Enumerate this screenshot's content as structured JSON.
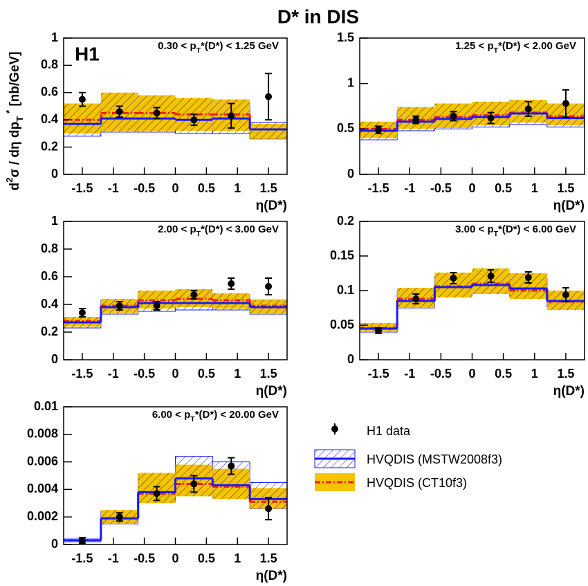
{
  "title": "D* in DIS",
  "experiment": "H1",
  "x_label": "η(D*)",
  "y_label": [
    {
      "text": "d",
      "pos": "base"
    },
    {
      "text": "2",
      "pos": "sup"
    },
    {
      "text": "σ / dη dp",
      "pos": "base"
    },
    {
      "text": "T",
      "pos": "sub"
    },
    {
      "text": " *",
      "pos": "sup"
    },
    {
      "text": " [nb/GeV]",
      "pos": "base"
    }
  ],
  "legend": [
    {
      "name": "H1 data",
      "color": "#000000"
    },
    {
      "name": "HVQDIS (MSTW2008f3)",
      "color": "#1a1aff"
    },
    {
      "name": "HVQDIS (CT10f3)",
      "color": "#f5c400",
      "line_color": "#ff1a1a"
    }
  ],
  "chart_data": [
    {
      "type": "step",
      "label": [
        {
          "text": "0.30 < p",
          "pos": "base"
        },
        {
          "text": "T",
          "pos": "sub"
        },
        {
          "text": "*(D*) < 1.25 GeV",
          "pos": "base"
        }
      ],
      "bins": [
        -1.8,
        -1.2,
        -0.6,
        0,
        0.6,
        1.2,
        1.8
      ],
      "xlim": [
        -1.8,
        1.8
      ],
      "xticks": [
        -1.5,
        -1,
        -0.5,
        0,
        0.5,
        1,
        1.5
      ],
      "ylim": [
        0,
        1
      ],
      "yticks": [
        0,
        0.2,
        0.4,
        0.6,
        0.8,
        1
      ],
      "data": {
        "x": [
          -1.5,
          -0.9,
          -0.3,
          0.3,
          0.9,
          1.5
        ],
        "values": [
          0.55,
          0.46,
          0.45,
          0.4,
          0.43,
          0.57
        ],
        "errors": [
          0.05,
          0.04,
          0.04,
          0.04,
          0.09,
          0.17
        ]
      },
      "mstw": {
        "values": [
          0.37,
          0.41,
          0.41,
          0.4,
          0.41,
          0.33
        ],
        "lower": [
          0.28,
          0.31,
          0.31,
          0.3,
          0.3,
          0.26
        ],
        "upper": [
          0.47,
          0.52,
          0.52,
          0.51,
          0.51,
          0.38
        ]
      },
      "ct10": {
        "values": [
          0.4,
          0.45,
          0.45,
          0.44,
          0.44,
          0.33
        ],
        "lower": [
          0.3,
          0.32,
          0.32,
          0.32,
          0.32,
          0.26
        ],
        "upper": [
          0.52,
          0.6,
          0.58,
          0.56,
          0.55,
          0.37
        ]
      }
    },
    {
      "type": "step",
      "label": [
        {
          "text": "1.25 < p",
          "pos": "base"
        },
        {
          "text": "T",
          "pos": "sub"
        },
        {
          "text": "*(D*) < 2.00 GeV",
          "pos": "base"
        }
      ],
      "bins": [
        -1.8,
        -1.2,
        -0.6,
        0,
        0.6,
        1.2,
        1.8
      ],
      "xlim": [
        -1.8,
        1.8
      ],
      "xticks": [
        -1.5,
        -1,
        -0.5,
        0,
        0.5,
        1,
        1.5
      ],
      "ylim": [
        0,
        1.5
      ],
      "yticks": [
        0,
        0.5,
        1,
        1.5
      ],
      "data": {
        "x": [
          -1.5,
          -0.9,
          -0.3,
          0.3,
          0.9,
          1.5
        ],
        "values": [
          0.49,
          0.6,
          0.64,
          0.62,
          0.72,
          0.78
        ],
        "errors": [
          0.04,
          0.04,
          0.05,
          0.06,
          0.08,
          0.15
        ]
      },
      "mstw": {
        "values": [
          0.48,
          0.58,
          0.61,
          0.63,
          0.67,
          0.62
        ],
        "lower": [
          0.38,
          0.48,
          0.5,
          0.52,
          0.55,
          0.52
        ],
        "upper": [
          0.56,
          0.68,
          0.72,
          0.74,
          0.78,
          0.72
        ]
      },
      "ct10": {
        "values": [
          0.5,
          0.6,
          0.63,
          0.65,
          0.68,
          0.64
        ],
        "lower": [
          0.4,
          0.5,
          0.51,
          0.54,
          0.57,
          0.54
        ],
        "upper": [
          0.58,
          0.74,
          0.78,
          0.8,
          0.82,
          0.78
        ]
      }
    },
    {
      "type": "step",
      "label": [
        {
          "text": "2.00 < p",
          "pos": "base"
        },
        {
          "text": "T",
          "pos": "sub"
        },
        {
          "text": "*(D*) < 3.00 GeV",
          "pos": "base"
        }
      ],
      "bins": [
        -1.8,
        -1.2,
        -0.6,
        0,
        0.6,
        1.2,
        1.8
      ],
      "xlim": [
        -1.8,
        1.8
      ],
      "xticks": [
        -1.5,
        -1,
        -0.5,
        0,
        0.5,
        1,
        1.5
      ],
      "ylim": [
        0,
        1
      ],
      "yticks": [
        0,
        0.2,
        0.4,
        0.6,
        0.8,
        1
      ],
      "data": {
        "x": [
          -1.5,
          -0.9,
          -0.3,
          0.3,
          0.9,
          1.5
        ],
        "values": [
          0.34,
          0.39,
          0.39,
          0.47,
          0.55,
          0.53
        ],
        "errors": [
          0.03,
          0.03,
          0.03,
          0.03,
          0.04,
          0.06
        ]
      },
      "mstw": {
        "values": [
          0.27,
          0.38,
          0.41,
          0.41,
          0.41,
          0.38
        ],
        "lower": [
          0.23,
          0.33,
          0.35,
          0.36,
          0.36,
          0.33
        ],
        "upper": [
          0.3,
          0.43,
          0.47,
          0.48,
          0.47,
          0.43
        ]
      },
      "ct10": {
        "values": [
          0.28,
          0.39,
          0.43,
          0.44,
          0.43,
          0.39
        ],
        "lower": [
          0.24,
          0.34,
          0.37,
          0.38,
          0.37,
          0.33
        ],
        "upper": [
          0.31,
          0.44,
          0.5,
          0.51,
          0.48,
          0.43
        ]
      }
    },
    {
      "type": "step",
      "label": [
        {
          "text": "3.00 < p",
          "pos": "base"
        },
        {
          "text": "T",
          "pos": "sub"
        },
        {
          "text": "*(D*) < 6.00 GeV",
          "pos": "base"
        }
      ],
      "bins": [
        -1.8,
        -1.2,
        -0.6,
        0,
        0.6,
        1.2,
        1.8
      ],
      "xlim": [
        -1.8,
        1.8
      ],
      "xticks": [
        -1.5,
        -1,
        -0.5,
        0,
        0.5,
        1,
        1.5
      ],
      "ylim": [
        0,
        0.2
      ],
      "yticks": [
        0,
        0.05,
        0.1,
        0.15,
        0.2
      ],
      "data": {
        "x": [
          -1.5,
          -0.9,
          -0.3,
          0.3,
          0.9,
          1.5
        ],
        "values": [
          0.042,
          0.088,
          0.118,
          0.121,
          0.119,
          0.094
        ],
        "errors": [
          0.004,
          0.007,
          0.008,
          0.009,
          0.008,
          0.01
        ]
      },
      "mstw": {
        "values": [
          0.045,
          0.085,
          0.105,
          0.108,
          0.103,
          0.085
        ],
        "lower": [
          0.04,
          0.075,
          0.093,
          0.096,
          0.092,
          0.076
        ],
        "upper": [
          0.05,
          0.097,
          0.12,
          0.124,
          0.118,
          0.096
        ]
      },
      "ct10": {
        "values": [
          0.046,
          0.088,
          0.106,
          0.11,
          0.1,
          0.084
        ],
        "lower": [
          0.04,
          0.075,
          0.09,
          0.095,
          0.088,
          0.072
        ],
        "upper": [
          0.053,
          0.104,
          0.126,
          0.132,
          0.125,
          0.1
        ]
      }
    },
    {
      "type": "step",
      "label": [
        {
          "text": "6.00 < p",
          "pos": "base"
        },
        {
          "text": "T",
          "pos": "sub"
        },
        {
          "text": "*(D*) < 20.00 GeV",
          "pos": "base"
        }
      ],
      "bins": [
        -1.8,
        -1.2,
        -0.6,
        0,
        0.6,
        1.2,
        1.8
      ],
      "xlim": [
        -1.8,
        1.8
      ],
      "xticks": [
        -1.5,
        -1,
        -0.5,
        0,
        0.5,
        1,
        1.5
      ],
      "ylim": [
        0,
        0.01
      ],
      "yticks": [
        0,
        0.002,
        0.004,
        0.006,
        0.008,
        0.01
      ],
      "data": {
        "x": [
          -1.5,
          -0.9,
          -0.3,
          0.3,
          0.9,
          1.5
        ],
        "values": [
          0.0003,
          0.002,
          0.0037,
          0.0044,
          0.0057,
          0.0026
        ],
        "errors": [
          0.0002,
          0.0003,
          0.0005,
          0.0006,
          0.0006,
          0.0008
        ]
      },
      "mstw": {
        "values": [
          0.0003,
          0.0019,
          0.0038,
          0.0048,
          0.0043,
          0.0033
        ],
        "lower": [
          0.0002,
          0.0015,
          0.0031,
          0.0038,
          0.0034,
          0.0026
        ],
        "upper": [
          0.0004,
          0.0024,
          0.0051,
          0.0064,
          0.006,
          0.0045
        ]
      },
      "ct10": {
        "values": [
          0.0003,
          0.0019,
          0.0037,
          0.0044,
          0.0042,
          0.0031
        ],
        "lower": [
          0.0002,
          0.0015,
          0.003,
          0.0035,
          0.0033,
          0.0026
        ],
        "upper": [
          0.0004,
          0.0025,
          0.0052,
          0.0058,
          0.0055,
          0.0041
        ]
      }
    }
  ]
}
